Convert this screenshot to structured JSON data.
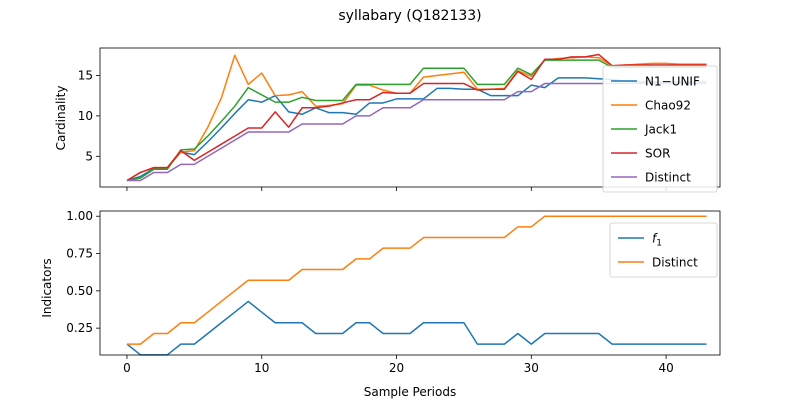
{
  "chart_data": [
    {
      "type": "line",
      "title": "syllabary (Q182133)",
      "xlabel": "",
      "ylabel": "Cardinality",
      "xlim": [
        -2,
        44
      ],
      "ylim": [
        1.2,
        18.4
      ],
      "xticks": [
        0,
        10,
        20,
        30,
        40
      ],
      "yticks": [
        5,
        10,
        15
      ],
      "legend": "right",
      "grid": false,
      "series": [
        {
          "name": "N1−UNIF",
          "color": "#1f77b4",
          "values": [
            2,
            2.5,
            3.5,
            3.6,
            5.5,
            5.2,
            6.8,
            8.5,
            10.3,
            12,
            11.7,
            12.5,
            10.5,
            10.2,
            11,
            10.4,
            10.4,
            10.2,
            11.6,
            11.6,
            12.1,
            12.1,
            12.1,
            13.4,
            13.4,
            13.3,
            13.3,
            12.5,
            12.5,
            12.5,
            13.8,
            13.5,
            14.7,
            14.7,
            14.7,
            14.6,
            14.5,
            14.3,
            14.2,
            14.2,
            14.2,
            14.2,
            14.2,
            14.2
          ]
        },
        {
          "name": "Chao92",
          "color": "#ff7f0e",
          "values": [
            2,
            3,
            3.6,
            3.6,
            5.5,
            5.7,
            8.6,
            12.2,
            17.5,
            13.9,
            15.3,
            12.5,
            12.6,
            13,
            11.2,
            11.3,
            11.5,
            13.8,
            13.8,
            13.2,
            12.8,
            12.8,
            14.8,
            15,
            15.2,
            15.4,
            13.3,
            13.3,
            13.4,
            15.6,
            14.9,
            16.9,
            17.1,
            17.2,
            17.3,
            17.2,
            16.2,
            16.3,
            16.4,
            16.5,
            16.5,
            16.4,
            16.4,
            16.4
          ]
        },
        {
          "name": "Jack1",
          "color": "#2ca02c",
          "values": [
            2,
            2.3,
            3.4,
            3.4,
            5.8,
            5.9,
            7.5,
            9.3,
            11.2,
            13.5,
            12.6,
            11.7,
            11.7,
            12.3,
            11.9,
            11.9,
            11.9,
            13.9,
            13.9,
            13.9,
            13.9,
            13.9,
            15.9,
            15.9,
            15.9,
            15.9,
            13.9,
            13.9,
            13.9,
            15.9,
            15.1,
            16.9,
            16.9,
            16.9,
            16.9,
            16.9,
            16,
            16,
            16,
            16,
            16,
            16,
            16,
            16
          ]
        },
        {
          "name": "SOR",
          "color": "#d62728",
          "values": [
            2,
            3,
            3.6,
            3.6,
            5.7,
            4.5,
            5.5,
            6.5,
            7.5,
            8.5,
            8.5,
            10.5,
            8.6,
            11,
            11,
            11.2,
            11.6,
            12,
            12,
            12.9,
            12.8,
            12.8,
            14,
            14,
            14,
            14,
            13.2,
            13.3,
            13.3,
            15.5,
            14.5,
            17,
            17,
            17.3,
            17.3,
            17.6,
            16.2,
            16.3,
            16.3,
            16.3,
            16.3,
            16.3,
            16.3,
            16.3
          ]
        },
        {
          "name": "Distinct",
          "color": "#9467bd",
          "values": [
            2,
            2,
            3,
            3,
            4,
            4,
            5,
            6,
            7,
            8,
            8,
            8,
            8,
            9,
            9,
            9,
            9,
            10,
            10,
            11,
            11,
            11,
            12,
            12,
            12,
            12,
            12,
            12,
            12,
            13,
            13,
            14,
            14,
            14,
            14,
            14,
            14,
            14,
            14,
            14,
            14,
            14,
            14,
            14
          ]
        }
      ]
    },
    {
      "type": "line",
      "title": "",
      "xlabel": "Sample Periods",
      "ylabel": "Indicators",
      "xlim": [
        -2,
        44
      ],
      "ylim": [
        0.07,
        1.035
      ],
      "xticks": [
        0,
        10,
        20,
        30,
        40
      ],
      "yticks": [
        0.25,
        0.5,
        0.75,
        1.0
      ],
      "ytick_labels": [
        "0.25",
        "0.50",
        "0.75",
        "1.00"
      ],
      "legend": "top-right",
      "grid": false,
      "series": [
        {
          "name": "f",
          "name_sub": "1",
          "color": "#1f77b4",
          "values": [
            0.143,
            0.071,
            0.071,
            0.071,
            0.143,
            0.143,
            0.214,
            0.286,
            0.357,
            0.429,
            0.357,
            0.286,
            0.286,
            0.286,
            0.214,
            0.214,
            0.214,
            0.286,
            0.286,
            0.214,
            0.214,
            0.214,
            0.286,
            0.286,
            0.286,
            0.286,
            0.143,
            0.143,
            0.143,
            0.214,
            0.143,
            0.214,
            0.214,
            0.214,
            0.214,
            0.214,
            0.143,
            0.143,
            0.143,
            0.143,
            0.143,
            0.143,
            0.143,
            0.143
          ]
        },
        {
          "name": "Distinct",
          "color": "#ff7f0e",
          "values": [
            0.143,
            0.143,
            0.214,
            0.214,
            0.286,
            0.286,
            0.357,
            0.429,
            0.5,
            0.571,
            0.571,
            0.571,
            0.571,
            0.643,
            0.643,
            0.643,
            0.643,
            0.714,
            0.714,
            0.786,
            0.786,
            0.786,
            0.857,
            0.857,
            0.857,
            0.857,
            0.857,
            0.857,
            0.857,
            0.929,
            0.929,
            1,
            1,
            1,
            1,
            1,
            1,
            1,
            1,
            1,
            1,
            1,
            1,
            1
          ]
        }
      ]
    }
  ]
}
